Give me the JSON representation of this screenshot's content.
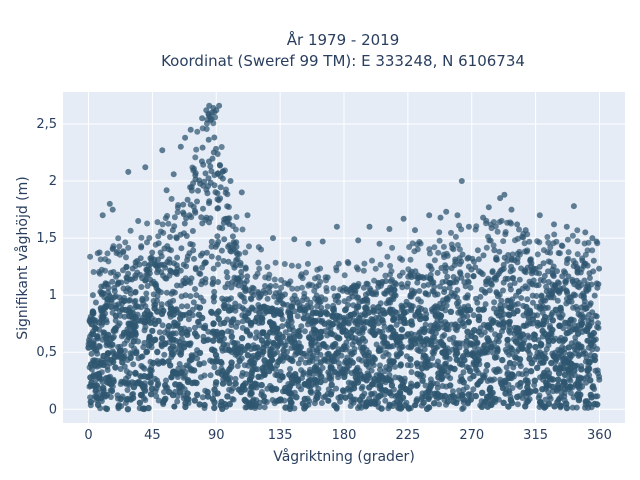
{
  "chart_data": {
    "type": "scatter",
    "title_line1": "År 1979 - 2019",
    "title_line2": "Koordinat (Sweref 99 TM): E 333248, N 6106734",
    "xlabel": "Vågriktning (grader)",
    "ylabel": "Signifikant våghöjd (m)",
    "xlim": [
      -18,
      378
    ],
    "ylim": [
      -0.12,
      2.78
    ],
    "xticks": [
      0,
      45,
      90,
      135,
      180,
      225,
      270,
      315,
      360
    ],
    "xtick_labels": [
      "0",
      "45",
      "90",
      "135",
      "180",
      "225",
      "270",
      "315",
      "360"
    ],
    "yticks": [
      0,
      0.5,
      1,
      1.5,
      2,
      2.5
    ],
    "ytick_labels": [
      "0",
      "0,5",
      "1",
      "1,5",
      "2",
      "2,5"
    ],
    "grid": true,
    "marker_color": "#2f5670",
    "plot_background": "#e5ecf6",
    "upper_envelope": {
      "x": [
        0,
        15,
        30,
        45,
        60,
        70,
        80,
        85,
        90,
        95,
        100,
        110,
        120,
        135,
        150,
        165,
        180,
        195,
        210,
        225,
        240,
        255,
        270,
        285,
        300,
        315,
        330,
        345,
        355,
        360
      ],
      "y": [
        1.1,
        1.2,
        1.3,
        1.4,
        1.6,
        1.9,
        2.3,
        2.45,
        2.4,
        2.0,
        1.6,
        1.3,
        1.15,
        1.05,
        1.0,
        1.0,
        1.05,
        1.1,
        1.15,
        1.2,
        1.25,
        1.3,
        1.4,
        1.4,
        1.35,
        1.3,
        1.25,
        1.3,
        1.35,
        1.3
      ]
    },
    "outliers": {
      "x": [
        10,
        15,
        17,
        28,
        35,
        40,
        52,
        55,
        60,
        65,
        68,
        72,
        80,
        83,
        85,
        87,
        88,
        90,
        92,
        100,
        108,
        112,
        130,
        145,
        155,
        165,
        175,
        190,
        198,
        205,
        212,
        222,
        230,
        240,
        248,
        252,
        260,
        263,
        268,
        278,
        282,
        290,
        293,
        298,
        302,
        308,
        318,
        328,
        337,
        342,
        350,
        355,
        358
      ],
      "y": [
        1.7,
        1.8,
        1.75,
        2.08,
        1.65,
        2.12,
        2.27,
        1.92,
        2.06,
        2.3,
        2.38,
        2.45,
        2.55,
        2.62,
        2.66,
        2.6,
        2.64,
        2.62,
        2.66,
        2.0,
        1.9,
        1.7,
        1.5,
        1.49,
        1.45,
        1.47,
        1.6,
        1.48,
        1.6,
        1.45,
        1.58,
        1.67,
        1.57,
        1.7,
        1.68,
        1.73,
        1.7,
        2.0,
        1.6,
        1.68,
        1.77,
        1.85,
        1.88,
        1.75,
        1.62,
        1.57,
        1.7,
        1.62,
        1.6,
        1.78,
        1.55,
        1.5,
        1.47
      ]
    }
  }
}
